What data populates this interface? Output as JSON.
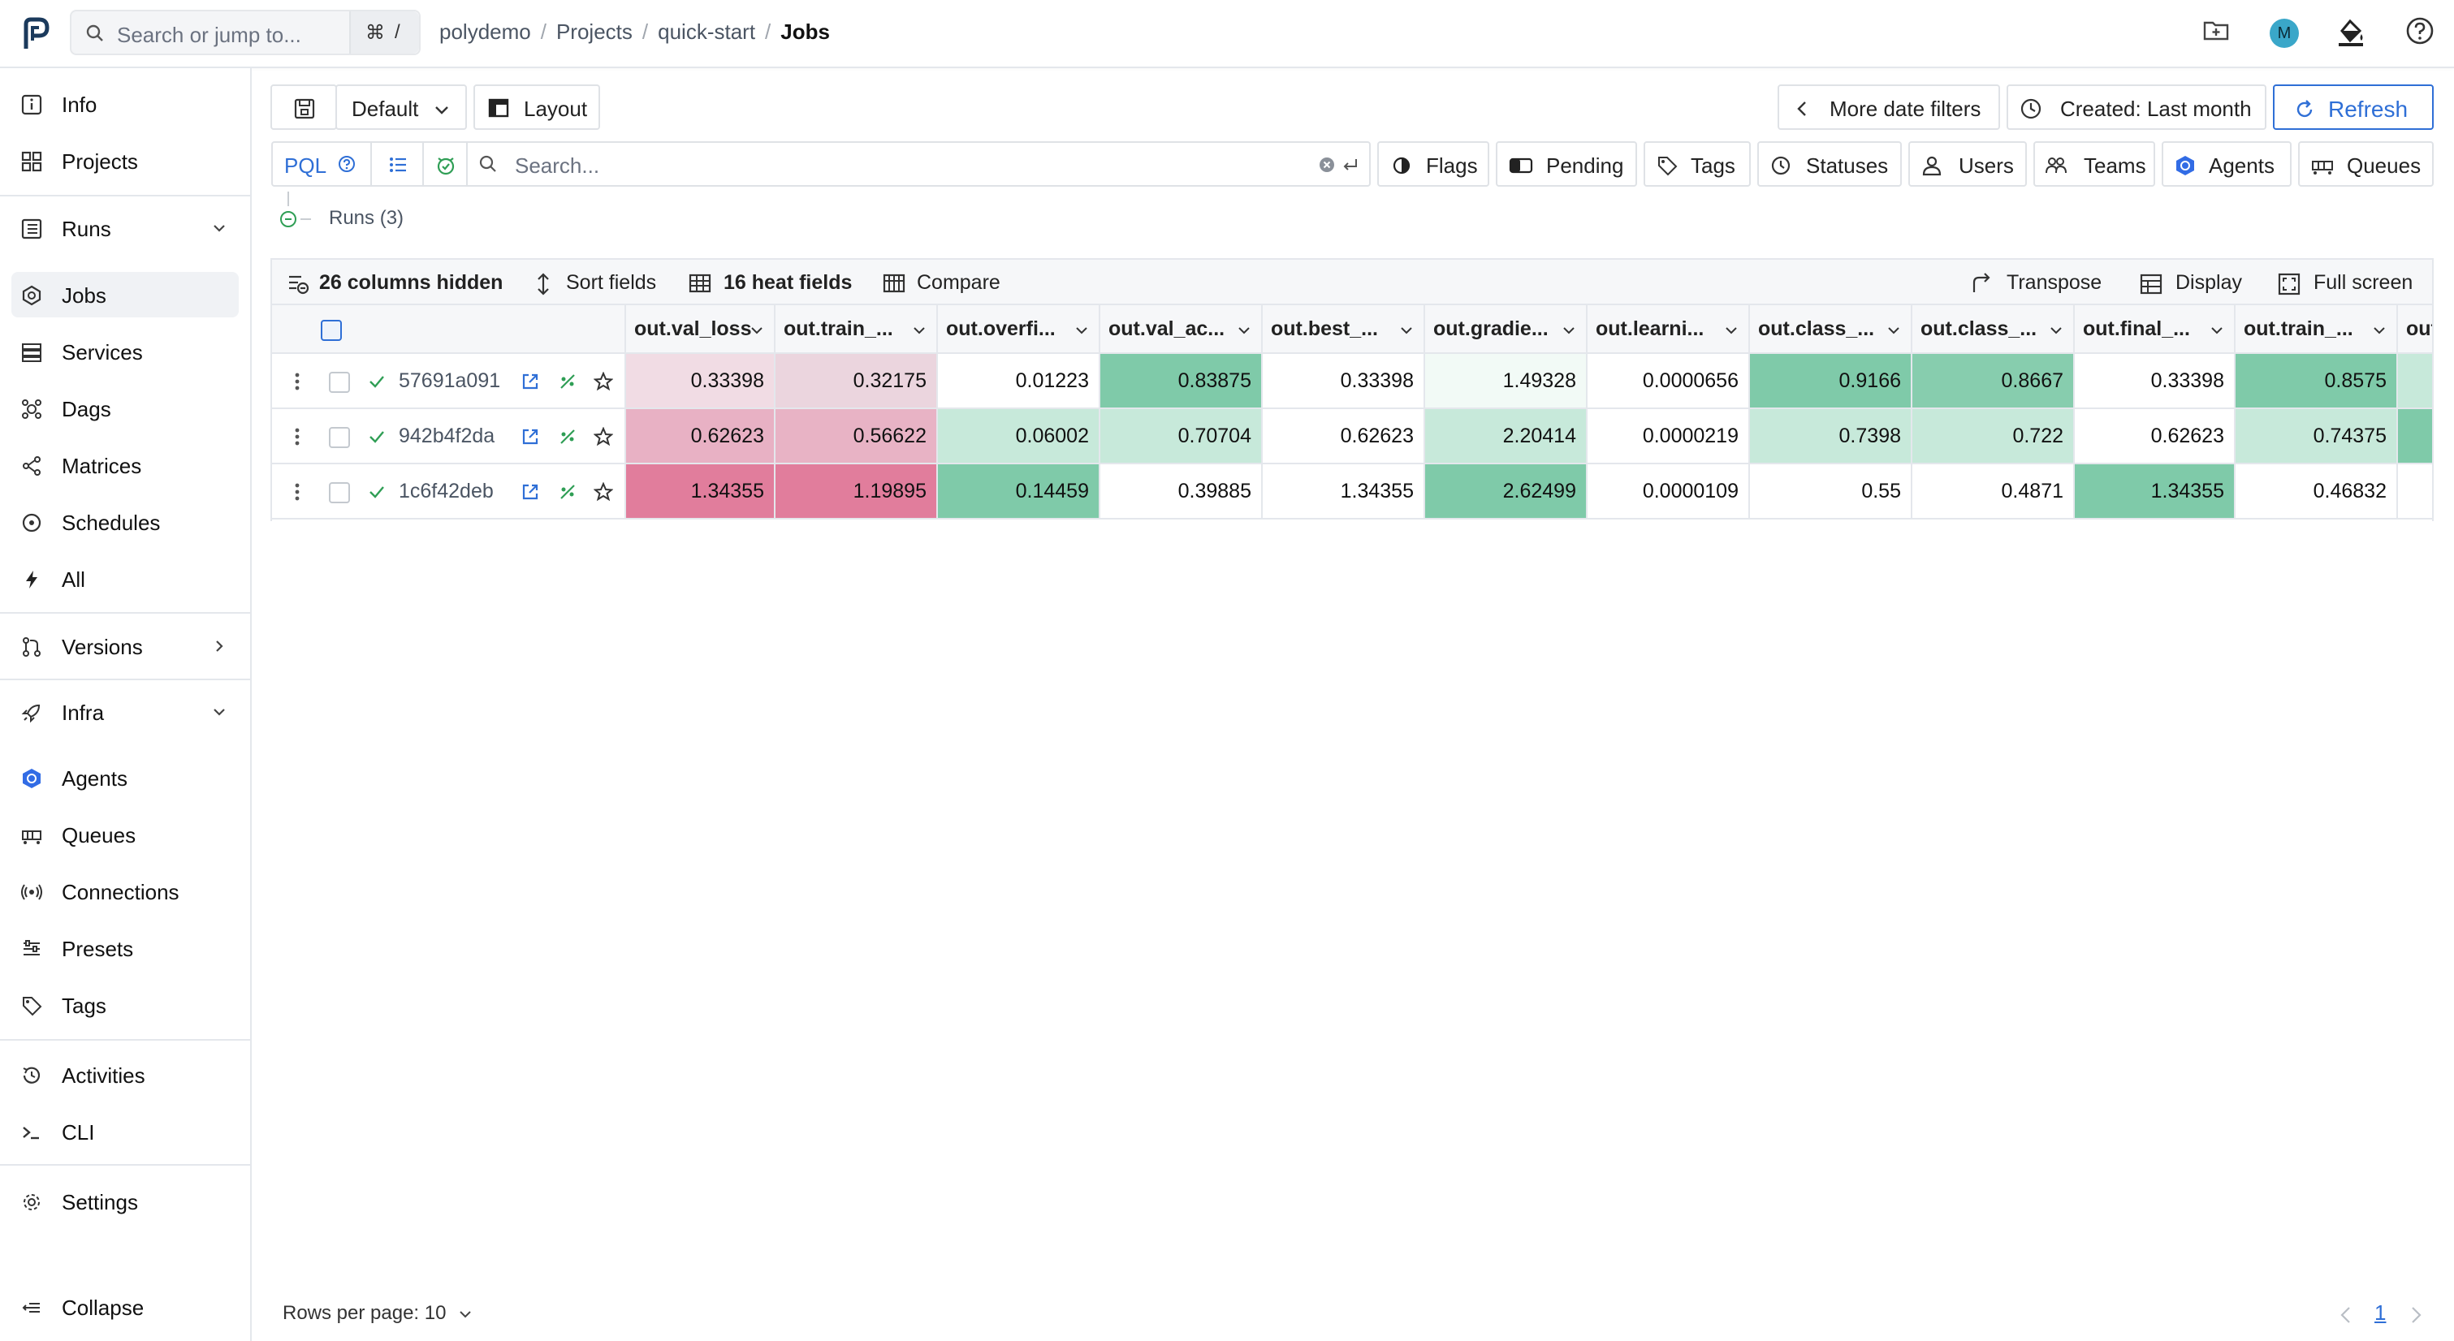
{
  "topbar": {
    "search_placeholder": "Search or jump to...",
    "shortcut_cmd": "⌘",
    "shortcut_key": "/",
    "breadcrumbs": [
      "polydemo",
      "Projects",
      "quick-start",
      "Jobs"
    ],
    "avatar_initial": "M"
  },
  "sidebar": {
    "items": [
      {
        "label": "Info",
        "icon": "info-icon"
      },
      {
        "label": "Projects",
        "icon": "grid-icon"
      },
      {
        "label": "Runs",
        "icon": "list-icon"
      },
      {
        "label": "Jobs",
        "icon": "job-icon"
      },
      {
        "label": "Services",
        "icon": "services-icon"
      },
      {
        "label": "Dags",
        "icon": "dag-icon"
      },
      {
        "label": "Matrices",
        "icon": "matrix-icon"
      },
      {
        "label": "Schedules",
        "icon": "schedule-icon"
      },
      {
        "label": "All",
        "icon": "bolt-icon"
      },
      {
        "label": "Versions",
        "icon": "versions-icon"
      },
      {
        "label": "Infra",
        "icon": "rocket-icon"
      },
      {
        "label": "Agents",
        "icon": "agent-icon"
      },
      {
        "label": "Queues",
        "icon": "queue-icon"
      },
      {
        "label": "Connections",
        "icon": "connection-icon"
      },
      {
        "label": "Presets",
        "icon": "presets-icon"
      },
      {
        "label": "Tags",
        "icon": "tag-icon"
      },
      {
        "label": "Activities",
        "icon": "activity-icon"
      },
      {
        "label": "CLI",
        "icon": "terminal-icon"
      },
      {
        "label": "Settings",
        "icon": "gear-icon"
      }
    ],
    "collapse_label": "Collapse"
  },
  "toolbar": {
    "preset_label": "Default",
    "layout_label": "Layout",
    "more_date_filters": "More date filters",
    "created_filter": "Created: Last month",
    "refresh_label": "Refresh"
  },
  "filters": {
    "pql_label": "PQL",
    "search_placeholder": "Search...",
    "chips": [
      "Flags",
      "Pending",
      "Tags",
      "Statuses",
      "Users",
      "Teams",
      "Agents",
      "Queues"
    ]
  },
  "runs_count_label": "Runs (3)",
  "table_bar": {
    "columns_hidden": "26 columns hidden",
    "sort_fields": "Sort fields",
    "heat_fields": "16 heat fields",
    "compare": "Compare",
    "transpose": "Transpose",
    "display": "Display",
    "full_screen": "Full screen"
  },
  "table": {
    "columns": [
      "out.val_loss",
      "out.train_...",
      "out.overfi...",
      "out.val_ac...",
      "out.best_...",
      "out.gradie...",
      "out.learni...",
      "out.class_...",
      "out.class_...",
      "out.final_...",
      "out.train_...",
      "out."
    ],
    "rows": [
      {
        "id": "57691a091",
        "values": [
          "0.33398",
          "0.32175",
          "0.01223",
          "0.83875",
          "0.33398",
          "1.49328",
          "0.0000656",
          "0.9166",
          "0.8667",
          "0.33398",
          "0.8575",
          ""
        ]
      },
      {
        "id": "942b4f2da",
        "values": [
          "0.62623",
          "0.56622",
          "0.06002",
          "0.70704",
          "0.62623",
          "2.20414",
          "0.0000219",
          "0.7398",
          "0.722",
          "0.62623",
          "0.74375",
          ""
        ]
      },
      {
        "id": "1c6f42deb",
        "values": [
          "1.34355",
          "1.19895",
          "0.14459",
          "0.39885",
          "1.34355",
          "2.62499",
          "0.0000109",
          "0.55",
          "0.4871",
          "1.34355",
          "0.46832",
          ""
        ]
      }
    ],
    "heat_colors": [
      [
        "#f1dce4",
        "#ebd5de",
        "#ffffff",
        "#7fcaa9",
        "#ffffff",
        "#f2faf6",
        "#ffffff",
        "#7fcaa9",
        "#87cdae",
        "#ffffff",
        "#7fcaa9",
        "#c7e9da"
      ],
      [
        "#e8b1c4",
        "#e8b3c5",
        "#c7e9da",
        "#c7e9da",
        "#ffffff",
        "#c7e9da",
        "#ffffff",
        "#c7e9da",
        "#c7e9da",
        "#ffffff",
        "#c7e9da",
        "#7fcaa9"
      ],
      [
        "#e17d9c",
        "#e17d9c",
        "#7fcaa9",
        "#ffffff",
        "#ffffff",
        "#7fcaa9",
        "#ffffff",
        "#ffffff",
        "#ffffff",
        "#7fcaa9",
        "#ffffff",
        "#ffffff"
      ]
    ]
  },
  "footer": {
    "rows_per_page": "Rows per page: 10",
    "current_page": "1"
  },
  "colors": {
    "accent": "#2f6fd6",
    "success": "#2f9e55"
  }
}
